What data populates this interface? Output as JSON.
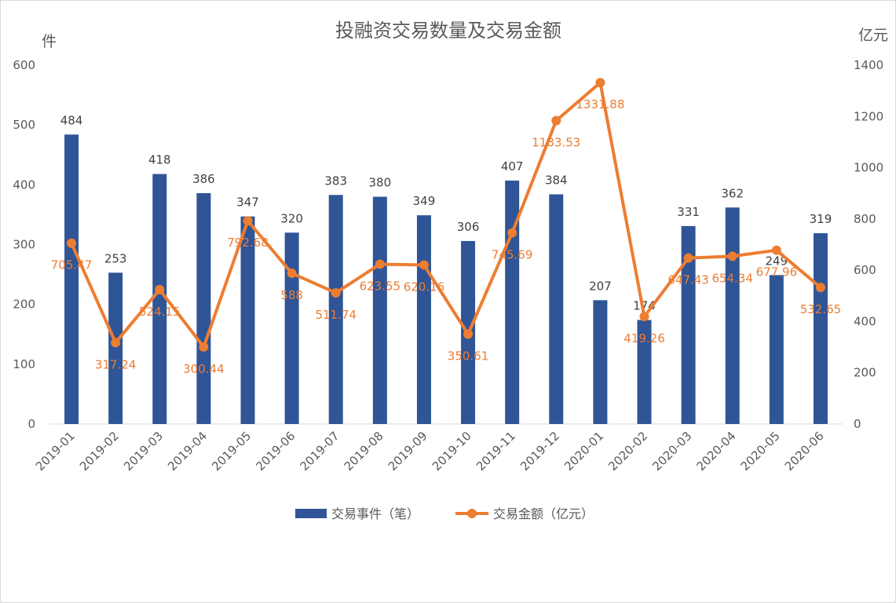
{
  "chart_data": {
    "type": "bar",
    "title": "投融资交易数量及交易金额",
    "y_left_label": "件",
    "y_right_label": "亿元",
    "y_left_ticks": [
      "0",
      "100",
      "200",
      "300",
      "400",
      "500",
      "600"
    ],
    "y_right_ticks": [
      "0",
      "200",
      "400",
      "600",
      "800",
      "1000",
      "1200",
      "1400"
    ],
    "ylim_left": [
      0,
      600
    ],
    "ylim_right": [
      0,
      1400
    ],
    "categories": [
      "2019-01",
      "2019-02",
      "2019-03",
      "2019-04",
      "2019-05",
      "2019-06",
      "2019-07",
      "2019-08",
      "2019-09",
      "2019-10",
      "2019-11",
      "2019-12",
      "2020-01",
      "2020-02",
      "2020-03",
      "2020-04",
      "2020-05",
      "2020-06"
    ],
    "series": [
      {
        "name": "交易事件（笔）",
        "type": "bar",
        "axis": "left",
        "color": "#2F5597",
        "values": [
          484,
          253,
          418,
          386,
          347,
          320,
          383,
          380,
          349,
          306,
          407,
          384,
          207,
          174,
          331,
          362,
          249,
          319
        ],
        "labels": [
          "484",
          "253",
          "418",
          "386",
          "347",
          "320",
          "383",
          "380",
          "349",
          "306",
          "407",
          "384",
          "207",
          "174",
          "331",
          "362",
          "249",
          "319"
        ]
      },
      {
        "name": "交易金额（亿元）",
        "type": "line",
        "axis": "right",
        "color": "#ED7D31",
        "values": [
          705.47,
          317.24,
          524.15,
          300.44,
          792.68,
          588,
          511.74,
          623.55,
          620.16,
          350.61,
          745.69,
          1183.53,
          1331.88,
          419.26,
          647.43,
          654.34,
          677.96,
          532.65
        ],
        "labels": [
          "705.47",
          "317.24",
          "524.15",
          "300.44",
          "792.68",
          "588",
          "511.74",
          "623.55",
          "620.16",
          "350.61",
          "745.69",
          "1183.53",
          "1331.88",
          "419.26",
          "647.43",
          "654.34",
          "677.96",
          "532.65"
        ]
      }
    ],
    "legend_position": "bottom",
    "grid": false
  }
}
